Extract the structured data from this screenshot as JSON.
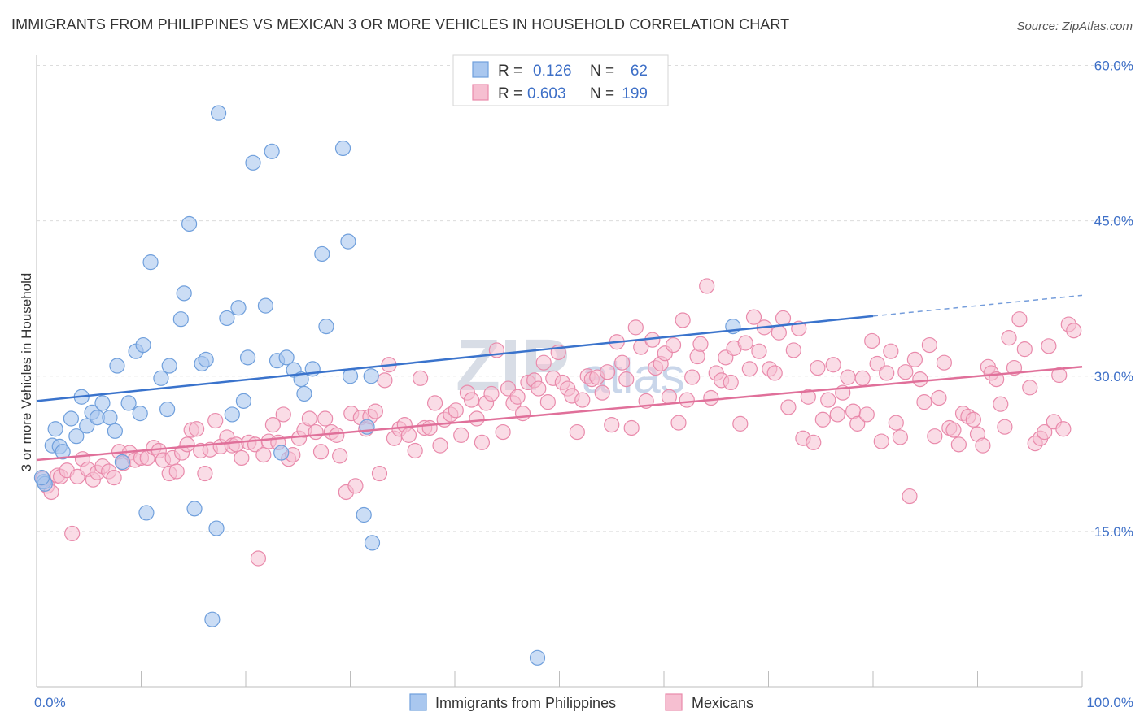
{
  "title": "IMMIGRANTS FROM PHILIPPINES VS MEXICAN 3 OR MORE VEHICLES IN HOUSEHOLD CORRELATION CHART",
  "source": "Source: ZipAtlas.com",
  "watermark": "ZIPatlas",
  "colors": {
    "blue_fill": "#a9c7ef",
    "blue_stroke": "#6f9fdc",
    "blue_line": "#3a73cc",
    "pink_fill": "#f6bfd1",
    "pink_stroke": "#e98aab",
    "pink_line": "#e0709a",
    "axis_text": "#3d6fc7"
  },
  "legend": {
    "r_label": "R =",
    "n_label": "N =",
    "rows": [
      {
        "series": "Immigrants from Philippines",
        "r": "0.126",
        "n": "62"
      },
      {
        "series": "Mexicans",
        "r": "0.603",
        "n": "199"
      }
    ]
  },
  "chart_data": {
    "type": "scatter",
    "title": "IMMIGRANTS FROM PHILIPPINES VS MEXICAN 3 OR MORE VEHICLES IN HOUSEHOLD CORRELATION CHART",
    "xlabel": "",
    "ylabel": "3 or more Vehicles in Household",
    "xlim": [
      0,
      100
    ],
    "ylim": [
      0,
      64
    ],
    "x_tick_labels": [
      "0.0%",
      "100.0%"
    ],
    "y_ticks": [
      15,
      30,
      45,
      60
    ],
    "y_tick_labels": [
      "15.0%",
      "30.0%",
      "45.0%",
      "60.0%"
    ],
    "grid": true,
    "legend_position": "top-center",
    "series": [
      {
        "name": "Immigrants from Philippines",
        "trend": {
          "x": [
            0,
            80
          ],
          "y": [
            27.6,
            35.8
          ],
          "dashed_extension_to": [
            100,
            37.8
          ]
        },
        "points": [
          [
            0.7,
            19.8
          ],
          [
            0.8,
            19.6
          ],
          [
            1.5,
            23.3
          ],
          [
            1.8,
            24.9
          ],
          [
            2.2,
            23.2
          ],
          [
            2.5,
            22.7
          ],
          [
            3.3,
            25.9
          ],
          [
            3.8,
            24.2
          ],
          [
            4.3,
            28.0
          ],
          [
            4.8,
            25.2
          ],
          [
            5.3,
            26.5
          ],
          [
            5.8,
            26.0
          ],
          [
            6.3,
            27.4
          ],
          [
            7.0,
            26.0
          ],
          [
            7.5,
            24.7
          ],
          [
            7.7,
            31.0
          ],
          [
            8.2,
            21.7
          ],
          [
            8.8,
            27.4
          ],
          [
            9.5,
            32.4
          ],
          [
            9.9,
            26.4
          ],
          [
            10.2,
            33.0
          ],
          [
            10.5,
            16.8
          ],
          [
            10.9,
            41.0
          ],
          [
            11.9,
            29.8
          ],
          [
            12.5,
            26.8
          ],
          [
            12.7,
            31.0
          ],
          [
            13.8,
            35.5
          ],
          [
            14.1,
            38.0
          ],
          [
            14.6,
            44.7
          ],
          [
            15.1,
            17.2
          ],
          [
            15.8,
            31.2
          ],
          [
            16.2,
            31.6
          ],
          [
            16.8,
            6.5
          ],
          [
            17.2,
            15.3
          ],
          [
            17.4,
            55.4
          ],
          [
            18.2,
            35.6
          ],
          [
            18.7,
            26.3
          ],
          [
            19.3,
            36.6
          ],
          [
            19.8,
            27.6
          ],
          [
            20.2,
            31.8
          ],
          [
            20.7,
            50.6
          ],
          [
            21.9,
            36.8
          ],
          [
            22.5,
            51.7
          ],
          [
            23.0,
            31.5
          ],
          [
            23.4,
            22.6
          ],
          [
            23.9,
            31.8
          ],
          [
            24.6,
            30.6
          ],
          [
            25.3,
            29.7
          ],
          [
            25.6,
            28.3
          ],
          [
            26.4,
            30.7
          ],
          [
            27.3,
            41.8
          ],
          [
            27.7,
            34.8
          ],
          [
            29.3,
            52.0
          ],
          [
            29.8,
            43.0
          ],
          [
            30.0,
            30.0
          ],
          [
            31.3,
            16.6
          ],
          [
            31.6,
            25.1
          ],
          [
            32.0,
            30.0
          ],
          [
            32.1,
            13.9
          ],
          [
            47.9,
            2.8
          ],
          [
            66.6,
            34.8
          ],
          [
            0.5,
            20.2
          ]
        ]
      },
      {
        "name": "Mexicans",
        "trend": {
          "x": [
            0,
            100
          ],
          "y": [
            21.9,
            30.9
          ]
        },
        "points": [
          [
            0.6,
            20.1
          ],
          [
            1.0,
            19.4
          ],
          [
            1.4,
            18.8
          ],
          [
            2.0,
            20.4
          ],
          [
            2.3,
            20.3
          ],
          [
            2.9,
            20.9
          ],
          [
            3.4,
            14.8
          ],
          [
            3.9,
            20.3
          ],
          [
            4.4,
            22.0
          ],
          [
            4.9,
            21.0
          ],
          [
            5.4,
            20.0
          ],
          [
            5.8,
            20.7
          ],
          [
            6.3,
            21.3
          ],
          [
            6.9,
            20.8
          ],
          [
            7.4,
            20.2
          ],
          [
            7.9,
            22.7
          ],
          [
            8.3,
            21.6
          ],
          [
            8.9,
            22.6
          ],
          [
            9.4,
            21.9
          ],
          [
            10.0,
            22.1
          ],
          [
            10.6,
            22.1
          ],
          [
            11.2,
            23.1
          ],
          [
            11.7,
            22.8
          ],
          [
            12.1,
            21.9
          ],
          [
            12.7,
            20.6
          ],
          [
            13.0,
            22.1
          ],
          [
            13.4,
            20.8
          ],
          [
            13.9,
            22.6
          ],
          [
            14.4,
            23.4
          ],
          [
            14.8,
            24.8
          ],
          [
            15.3,
            24.9
          ],
          [
            15.7,
            22.8
          ],
          [
            16.1,
            20.6
          ],
          [
            16.6,
            22.9
          ],
          [
            17.1,
            25.7
          ],
          [
            17.6,
            23.2
          ],
          [
            18.2,
            24.1
          ],
          [
            18.7,
            23.3
          ],
          [
            19.1,
            23.4
          ],
          [
            19.6,
            22.1
          ],
          [
            20.3,
            23.6
          ],
          [
            20.9,
            23.4
          ],
          [
            21.2,
            12.4
          ],
          [
            21.7,
            22.4
          ],
          [
            22.2,
            23.7
          ],
          [
            22.6,
            25.3
          ],
          [
            23.1,
            23.6
          ],
          [
            23.6,
            26.3
          ],
          [
            24.1,
            22.0
          ],
          [
            24.5,
            22.4
          ],
          [
            25.1,
            24.0
          ],
          [
            25.6,
            24.8
          ],
          [
            26.1,
            25.9
          ],
          [
            26.7,
            24.6
          ],
          [
            27.2,
            22.7
          ],
          [
            27.6,
            25.9
          ],
          [
            28.2,
            24.6
          ],
          [
            28.7,
            24.3
          ],
          [
            29.0,
            22.3
          ],
          [
            29.6,
            18.8
          ],
          [
            30.1,
            26.4
          ],
          [
            30.5,
            19.4
          ],
          [
            31.0,
            26.0
          ],
          [
            31.5,
            24.9
          ],
          [
            31.9,
            26.1
          ],
          [
            32.4,
            26.6
          ],
          [
            32.8,
            20.6
          ],
          [
            33.3,
            29.6
          ],
          [
            33.7,
            31.1
          ],
          [
            34.2,
            24.0
          ],
          [
            34.7,
            24.9
          ],
          [
            35.2,
            25.3
          ],
          [
            35.6,
            24.3
          ],
          [
            36.2,
            22.8
          ],
          [
            36.7,
            29.8
          ],
          [
            37.1,
            25.0
          ],
          [
            37.6,
            25.0
          ],
          [
            38.1,
            27.4
          ],
          [
            38.6,
            23.3
          ],
          [
            39.0,
            25.8
          ],
          [
            39.6,
            26.3
          ],
          [
            40.1,
            26.7
          ],
          [
            40.6,
            24.3
          ],
          [
            41.2,
            28.4
          ],
          [
            41.6,
            27.7
          ],
          [
            42.1,
            25.9
          ],
          [
            42.6,
            23.6
          ],
          [
            43.0,
            27.4
          ],
          [
            43.5,
            28.3
          ],
          [
            44.0,
            32.5
          ],
          [
            44.6,
            24.6
          ],
          [
            45.1,
            28.8
          ],
          [
            45.6,
            27.4
          ],
          [
            46.0,
            28.0
          ],
          [
            46.5,
            26.4
          ],
          [
            47.0,
            29.4
          ],
          [
            47.6,
            29.6
          ],
          [
            48.0,
            28.8
          ],
          [
            48.5,
            31.3
          ],
          [
            48.9,
            27.5
          ],
          [
            49.4,
            29.8
          ],
          [
            49.9,
            32.3
          ],
          [
            50.3,
            29.4
          ],
          [
            50.8,
            28.8
          ],
          [
            51.2,
            28.1
          ],
          [
            51.7,
            24.6
          ],
          [
            52.2,
            27.7
          ],
          [
            52.7,
            30.0
          ],
          [
            53.1,
            29.7
          ],
          [
            53.6,
            29.9
          ],
          [
            54.1,
            28.4
          ],
          [
            54.6,
            30.4
          ],
          [
            55.0,
            25.3
          ],
          [
            55.5,
            33.3
          ],
          [
            56.0,
            31.3
          ],
          [
            56.4,
            29.7
          ],
          [
            56.9,
            25.0
          ],
          [
            57.3,
            34.7
          ],
          [
            57.8,
            32.8
          ],
          [
            58.3,
            27.6
          ],
          [
            58.9,
            33.5
          ],
          [
            59.2,
            30.8
          ],
          [
            59.7,
            31.2
          ],
          [
            60.1,
            32.2
          ],
          [
            60.5,
            28.0
          ],
          [
            60.9,
            33.0
          ],
          [
            61.4,
            25.5
          ],
          [
            61.8,
            35.4
          ],
          [
            62.2,
            27.7
          ],
          [
            62.7,
            29.9
          ],
          [
            63.2,
            31.9
          ],
          [
            63.5,
            33.1
          ],
          [
            64.1,
            38.7
          ],
          [
            64.5,
            27.9
          ],
          [
            65.0,
            30.3
          ],
          [
            65.5,
            29.6
          ],
          [
            65.9,
            31.8
          ],
          [
            66.4,
            29.4
          ],
          [
            66.7,
            32.7
          ],
          [
            67.3,
            25.4
          ],
          [
            67.8,
            33.2
          ],
          [
            68.2,
            30.7
          ],
          [
            68.6,
            35.7
          ],
          [
            69.1,
            32.4
          ],
          [
            69.6,
            34.7
          ],
          [
            70.1,
            30.7
          ],
          [
            70.6,
            30.3
          ],
          [
            71.0,
            34.2
          ],
          [
            71.4,
            35.6
          ],
          [
            71.9,
            27.0
          ],
          [
            72.4,
            32.5
          ],
          [
            72.9,
            34.6
          ],
          [
            73.3,
            24.0
          ],
          [
            73.8,
            28.0
          ],
          [
            74.3,
            23.6
          ],
          [
            74.7,
            30.8
          ],
          [
            75.2,
            25.8
          ],
          [
            75.7,
            27.7
          ],
          [
            76.2,
            31.1
          ],
          [
            76.6,
            26.3
          ],
          [
            77.1,
            28.4
          ],
          [
            77.6,
            29.9
          ],
          [
            78.1,
            26.6
          ],
          [
            78.5,
            25.4
          ],
          [
            79.0,
            29.8
          ],
          [
            79.4,
            26.3
          ],
          [
            79.9,
            33.4
          ],
          [
            80.4,
            31.2
          ],
          [
            80.8,
            23.7
          ],
          [
            81.3,
            30.3
          ],
          [
            81.7,
            32.4
          ],
          [
            82.2,
            25.5
          ],
          [
            82.6,
            24.1
          ],
          [
            83.1,
            30.4
          ],
          [
            83.5,
            18.4
          ],
          [
            84.0,
            31.6
          ],
          [
            84.5,
            29.7
          ],
          [
            84.9,
            27.5
          ],
          [
            85.4,
            33.0
          ],
          [
            85.9,
            24.2
          ],
          [
            86.3,
            27.9
          ],
          [
            86.8,
            31.3
          ],
          [
            87.3,
            25.0
          ],
          [
            87.7,
            24.8
          ],
          [
            88.2,
            23.4
          ],
          [
            88.6,
            26.4
          ],
          [
            89.1,
            26.1
          ],
          [
            89.6,
            25.8
          ],
          [
            90.0,
            24.4
          ],
          [
            90.5,
            23.3
          ],
          [
            91.0,
            30.9
          ],
          [
            91.3,
            30.3
          ],
          [
            91.8,
            29.7
          ],
          [
            92.2,
            27.3
          ],
          [
            92.6,
            25.1
          ],
          [
            93.0,
            33.7
          ],
          [
            93.5,
            30.8
          ],
          [
            94.0,
            35.5
          ],
          [
            94.5,
            32.6
          ],
          [
            95.0,
            28.9
          ],
          [
            95.5,
            23.5
          ],
          [
            96.0,
            24.0
          ],
          [
            96.4,
            24.6
          ],
          [
            96.8,
            32.9
          ],
          [
            97.3,
            25.6
          ],
          [
            97.8,
            30.1
          ],
          [
            98.2,
            24.9
          ],
          [
            98.7,
            35.0
          ],
          [
            99.2,
            34.4
          ]
        ]
      }
    ]
  }
}
